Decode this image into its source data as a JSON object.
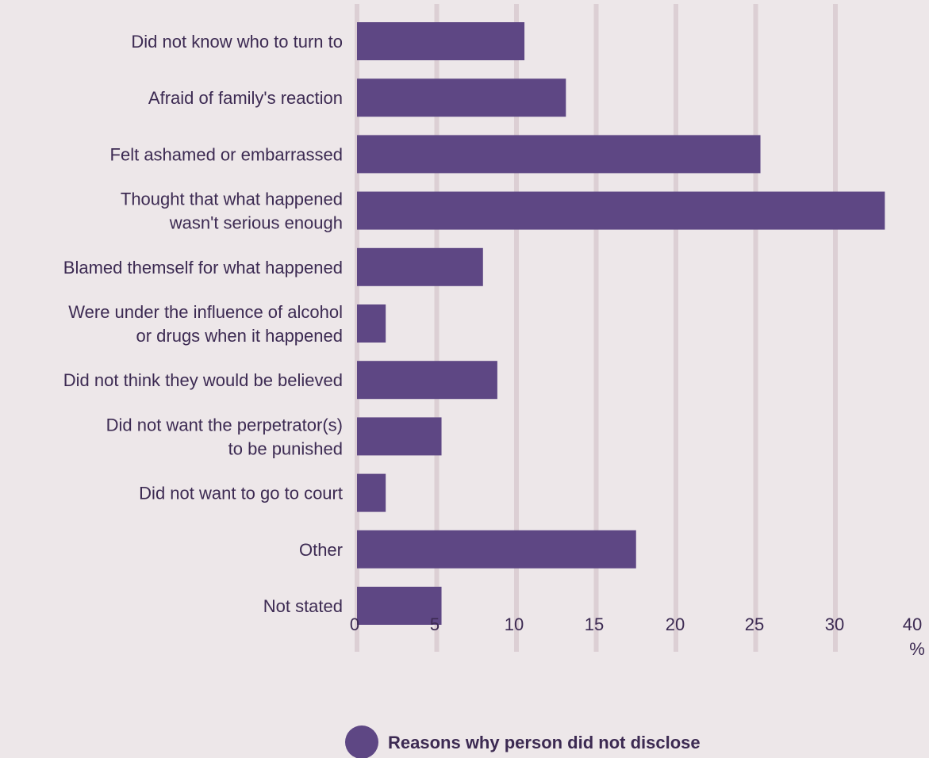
{
  "chart_data": {
    "type": "bar",
    "orientation": "horizontal",
    "categories": [
      [
        "Did not know who to turn to"
      ],
      [
        "Afraid of family's reaction"
      ],
      [
        "Felt ashamed or embarrassed"
      ],
      [
        "Thought that what happened",
        "wasn't serious enough"
      ],
      [
        "Blamed themself for what happened"
      ],
      [
        "Were under the influence of alcohol",
        "or drugs when it happened"
      ],
      [
        "Did not think they would be believed"
      ],
      [
        "Did not want the perpetrator(s)",
        "to be punished"
      ],
      [
        "Did not want to go to court"
      ],
      [
        "Other"
      ],
      [
        "Not stated"
      ]
    ],
    "series": [
      {
        "name": "Reasons why person did not disclose",
        "values": [
          10.5,
          13.1,
          25.3,
          33.1,
          7.9,
          1.8,
          8.8,
          5.3,
          1.8,
          17.5,
          5.3
        ]
      }
    ],
    "xlim": [
      0,
      40
    ],
    "x_ticks": [
      "0",
      "5",
      "10",
      "15",
      "20",
      "25",
      "30",
      "40"
    ],
    "x_unit": "%",
    "grid": true,
    "legend_position": "bottom",
    "colors": {
      "bar": "#5e4784",
      "grid": "#dccfd4",
      "background": "#ede7e9",
      "text": "#3c2a52"
    }
  }
}
